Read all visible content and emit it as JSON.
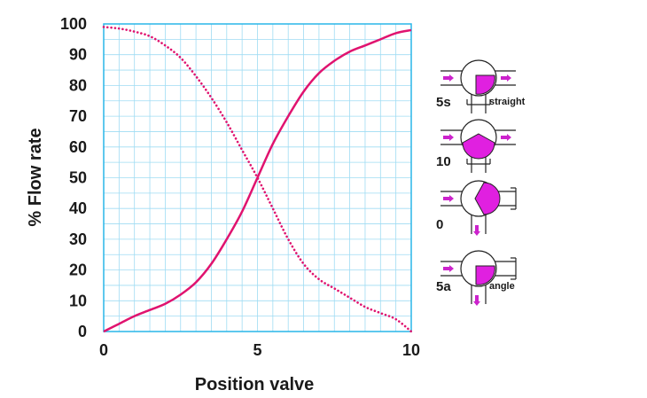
{
  "chart_data": {
    "type": "line",
    "xlabel": "Position valve",
    "ylabel": "% Flow rate",
    "xlim": [
      0,
      10
    ],
    "ylim": [
      0,
      100
    ],
    "x_ticks": [
      "0",
      "5",
      "10"
    ],
    "y_ticks": [
      "0",
      "10",
      "20",
      "30",
      "40",
      "50",
      "60",
      "70",
      "80",
      "90",
      "100"
    ],
    "grid": true,
    "x": [
      0,
      0.5,
      1,
      1.5,
      2,
      2.5,
      3,
      3.5,
      4,
      4.5,
      5,
      5.5,
      6,
      6.5,
      7,
      7.5,
      8,
      8.5,
      9,
      9.5,
      10
    ],
    "series": [
      {
        "style": "solid",
        "color": "#e0136f",
        "values": [
          0,
          2.5,
          5,
          7,
          9,
          12,
          16,
          22,
          30,
          39,
          50,
          61,
          70,
          78,
          84,
          88,
          91,
          93,
          95,
          97,
          98
        ]
      },
      {
        "style": "dotted",
        "color": "#e0136f",
        "values": [
          99,
          98.5,
          97.5,
          96,
          93,
          89,
          83,
          76,
          68,
          59,
          50,
          40,
          30,
          22,
          17,
          14,
          11,
          8,
          6,
          4,
          0
        ]
      }
    ]
  },
  "valve_diagram": {
    "fill_color": "#e020e0",
    "positions": [
      {
        "label": "5s",
        "note": "straight"
      },
      {
        "label": "10",
        "note": ""
      },
      {
        "label": "0",
        "note": ""
      },
      {
        "label": "5a",
        "note": "angle"
      }
    ]
  }
}
